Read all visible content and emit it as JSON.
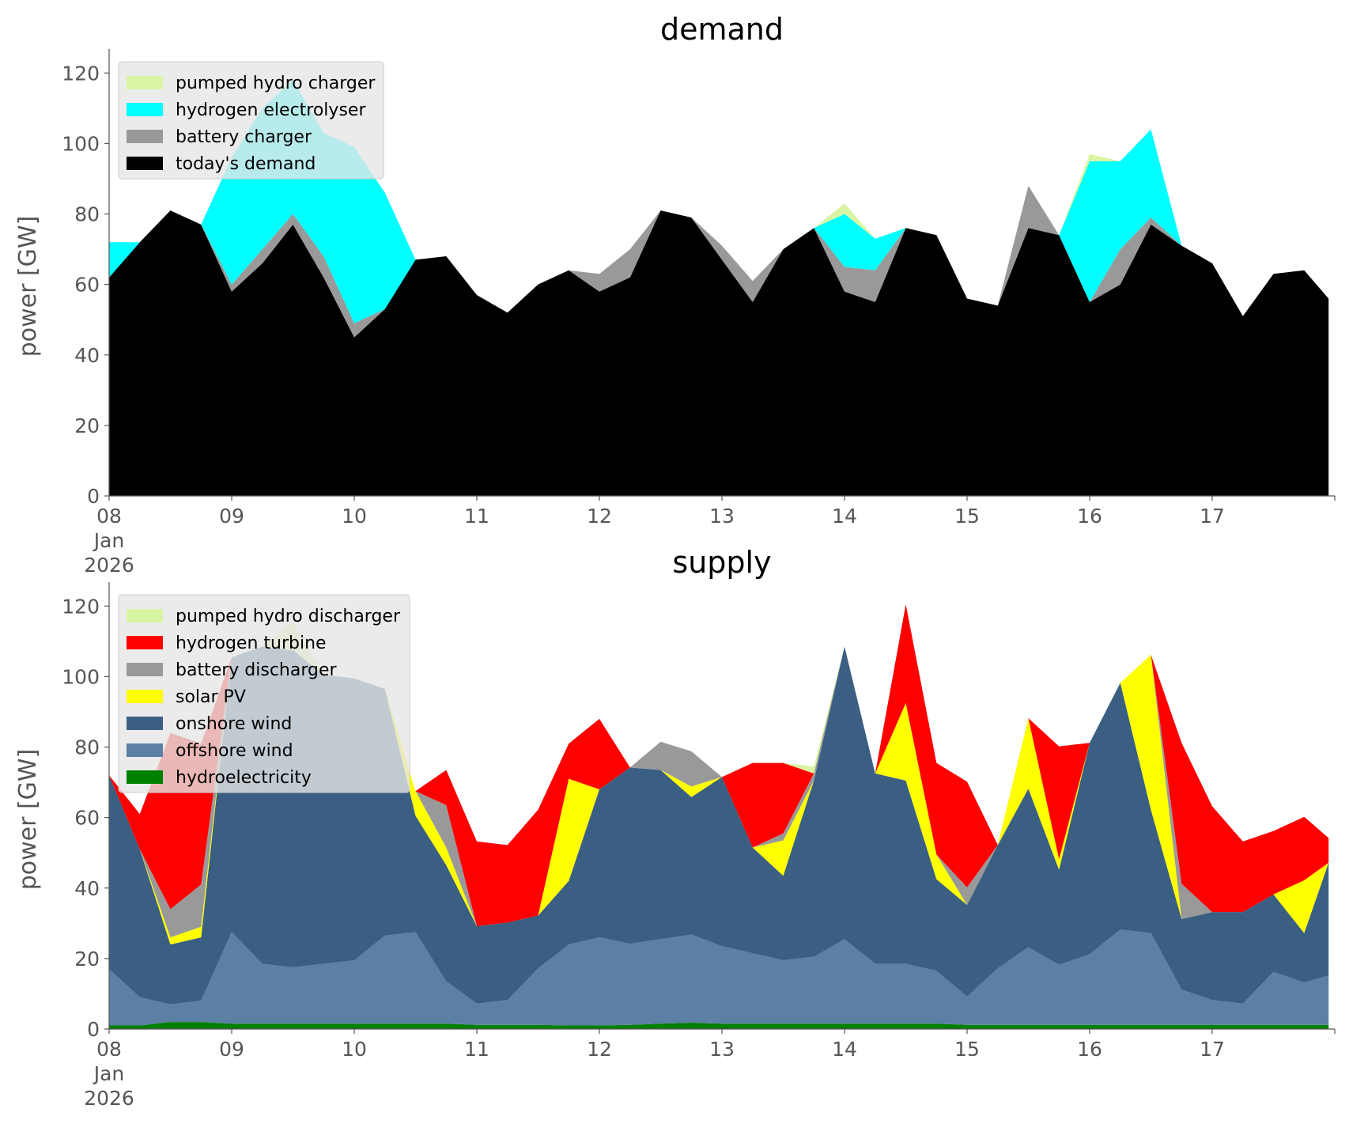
{
  "colors": {
    "pumped_hydro": "#d9f5a3",
    "hydrogen_electrolyser": "#00ffff",
    "hydrogen_turbine": "#ff0000",
    "battery": "#999999",
    "demand": "#000000",
    "solar": "#ffff00",
    "onshore": "#3b5f82",
    "offshore": "#5b80a3",
    "hydro": "#008000",
    "legend_bg": "#e6e6e6"
  },
  "chart_data": [
    {
      "type": "area",
      "title": "demand",
      "xlabel": "",
      "ylabel": "power [GW]",
      "ylim": [
        0,
        125
      ],
      "yticks": [
        "0",
        "20",
        "40",
        "60",
        "80",
        "100",
        "120"
      ],
      "xlim_days": [
        0,
        10
      ],
      "xticks": [
        {
          "day": 0,
          "lines": [
            "08",
            "Jan",
            "2026"
          ]
        },
        {
          "day": 1,
          "lines": [
            "09"
          ]
        },
        {
          "day": 2,
          "lines": [
            "10"
          ]
        },
        {
          "day": 3,
          "lines": [
            "11"
          ]
        },
        {
          "day": 4,
          "lines": [
            "12"
          ]
        },
        {
          "day": 5,
          "lines": [
            "13"
          ]
        },
        {
          "day": 6,
          "lines": [
            "14"
          ]
        },
        {
          "day": 7,
          "lines": [
            "15"
          ]
        },
        {
          "day": 8,
          "lines": [
            "16"
          ]
        },
        {
          "day": 9,
          "lines": [
            "17"
          ]
        }
      ],
      "legend_position": "top-left",
      "legend": [
        "pumped hydro charger",
        "hydrogen electrolyser",
        "battery charger",
        "today's demand"
      ],
      "x": [
        0,
        0.25,
        0.5,
        0.75,
        1,
        1.25,
        1.5,
        1.75,
        2,
        2.25,
        2.5,
        2.75,
        3,
        3.25,
        3.5,
        3.75,
        4,
        4.25,
        4.5,
        4.75,
        5,
        5.25,
        5.5,
        5.75,
        6,
        6.25,
        6.5,
        6.75,
        7,
        7.25,
        7.5,
        7.75,
        8,
        8.25,
        8.5,
        8.75,
        9,
        9.25,
        9.5,
        9.75,
        9.95
      ],
      "series": [
        {
          "name": "today's demand",
          "color_key": "demand",
          "values": [
            62,
            72,
            81,
            77,
            58,
            66,
            77,
            62,
            45,
            53,
            67,
            68,
            57,
            52,
            60,
            64,
            58,
            62,
            81,
            79,
            67,
            55,
            70,
            76,
            58,
            55,
            76,
            74,
            56,
            54,
            76,
            74,
            55,
            60,
            77,
            71,
            66,
            51,
            63,
            64,
            56
          ]
        },
        {
          "name": "battery charger",
          "color_key": "battery",
          "values": [
            0,
            0,
            0,
            0,
            2,
            4,
            3,
            6,
            4,
            0,
            0,
            0,
            0,
            0,
            0,
            0,
            5,
            8,
            0,
            0,
            4,
            6,
            0,
            0,
            7,
            9,
            0,
            0,
            0,
            0,
            12,
            0,
            0,
            10,
            2,
            0,
            0,
            0,
            0,
            0,
            0
          ]
        },
        {
          "name": "hydrogen electrolyser",
          "color_key": "hydrogen_electrolyser",
          "values": [
            10,
            0,
            0,
            0,
            36,
            40,
            38,
            35,
            50,
            33,
            0,
            0,
            0,
            0,
            0,
            0,
            0,
            0,
            0,
            0,
            0,
            0,
            0,
            0,
            15,
            9,
            0,
            0,
            0,
            0,
            0,
            0,
            40,
            25,
            25,
            0,
            0,
            0,
            0,
            0,
            0
          ]
        },
        {
          "name": "pumped hydro charger",
          "color_key": "pumped_hydro",
          "values": [
            0,
            0,
            0,
            0,
            0,
            0,
            0,
            0,
            0,
            0,
            0,
            0,
            0,
            0,
            0,
            0,
            0,
            0,
            0,
            0,
            0,
            0,
            0,
            0,
            3,
            0,
            0,
            0,
            0,
            0,
            0,
            0,
            2,
            0,
            0,
            0,
            0,
            0,
            0,
            0,
            0
          ]
        }
      ]
    },
    {
      "type": "area",
      "title": "supply",
      "xlabel": "",
      "ylabel": "power [GW]",
      "ylim": [
        0,
        125
      ],
      "yticks": [
        "0",
        "20",
        "40",
        "60",
        "80",
        "100",
        "120"
      ],
      "xlim_days": [
        0,
        10
      ],
      "xticks": [
        {
          "day": 0,
          "lines": [
            "08",
            "Jan",
            "2026"
          ]
        },
        {
          "day": 1,
          "lines": [
            "09"
          ]
        },
        {
          "day": 2,
          "lines": [
            "10"
          ]
        },
        {
          "day": 3,
          "lines": [
            "11"
          ]
        },
        {
          "day": 4,
          "lines": [
            "12"
          ]
        },
        {
          "day": 5,
          "lines": [
            "13"
          ]
        },
        {
          "day": 6,
          "lines": [
            "14"
          ]
        },
        {
          "day": 7,
          "lines": [
            "15"
          ]
        },
        {
          "day": 8,
          "lines": [
            "16"
          ]
        },
        {
          "day": 9,
          "lines": [
            "17"
          ]
        }
      ],
      "legend_position": "top-left",
      "legend": [
        "pumped hydro discharger",
        "hydrogen turbine",
        "battery discharger",
        "solar PV",
        "onshore wind",
        "offshore wind",
        "hydroelectricity"
      ],
      "x": [
        0,
        0.25,
        0.5,
        0.75,
        1,
        1.25,
        1.5,
        1.75,
        2,
        2.25,
        2.5,
        2.75,
        3,
        3.25,
        3.5,
        3.75,
        4,
        4.25,
        4.5,
        4.75,
        5,
        5.25,
        5.5,
        5.75,
        6,
        6.25,
        6.5,
        6.75,
        7,
        7.25,
        7.5,
        7.75,
        8,
        8.25,
        8.5,
        8.75,
        9,
        9.25,
        9.5,
        9.75,
        9.95
      ],
      "series": [
        {
          "name": "hydroelectricity",
          "color_key": "hydro",
          "values": [
            1,
            1,
            2,
            2,
            1.5,
            1.5,
            1.5,
            1.5,
            1.5,
            1.5,
            1.5,
            1.5,
            1.2,
            1.2,
            1.2,
            1,
            1,
            1.2,
            1.5,
            1.8,
            1.5,
            1.5,
            1.5,
            1.5,
            1.5,
            1.5,
            1.5,
            1.5,
            1.2,
            1.2,
            1.2,
            1.2,
            1.2,
            1.2,
            1.2,
            1.2,
            1.2,
            1.2,
            1.2,
            1.2,
            1.2
          ]
        },
        {
          "name": "offshore wind",
          "color_key": "offshore",
          "values": [
            16,
            8,
            5,
            6,
            26,
            17,
            16,
            17,
            18,
            25,
            26,
            12,
            6,
            7,
            16,
            23,
            25,
            23,
            24,
            25,
            22,
            20,
            18,
            19,
            24,
            17,
            17,
            15,
            8,
            16,
            22,
            17,
            20,
            27,
            26,
            10,
            7,
            6,
            15,
            12,
            14
          ]
        },
        {
          "name": "onshore wind",
          "color_key": "onshore",
          "values": [
            55,
            42,
            17,
            18,
            78,
            90,
            90,
            82,
            80,
            70,
            33,
            33,
            22,
            22,
            15,
            18,
            42,
            50,
            48,
            39,
            48,
            30,
            24,
            50,
            83,
            54,
            52,
            26,
            26,
            35,
            45,
            27,
            60,
            70,
            35,
            20,
            25,
            26,
            22,
            14,
            32
          ]
        },
        {
          "name": "solar PV",
          "color_key": "solar",
          "values": [
            0,
            0,
            2,
            3,
            0,
            0,
            0,
            0,
            0,
            0,
            7,
            5,
            0,
            0,
            0,
            29,
            0,
            0,
            0,
            3,
            0,
            0,
            10,
            0,
            0,
            0,
            22,
            7,
            0,
            0,
            20,
            3,
            0,
            0,
            44,
            0,
            0,
            0,
            0,
            15,
            0
          ]
        },
        {
          "name": "battery discharger",
          "color_key": "battery",
          "values": [
            0,
            0,
            8,
            12,
            0,
            0,
            0,
            0,
            0,
            0,
            0,
            12,
            0,
            0,
            0,
            0,
            0,
            0,
            8,
            10,
            0,
            0,
            2,
            2,
            0,
            0,
            0,
            0,
            5,
            0,
            0,
            0,
            0,
            0,
            0,
            10,
            0,
            0,
            0,
            0,
            0
          ]
        },
        {
          "name": "hydrogen turbine",
          "color_key": "hydrogen_turbine",
          "values": [
            0,
            10,
            50,
            40,
            0,
            0,
            0,
            0,
            0,
            0,
            0,
            10,
            24,
            22,
            30,
            10,
            20,
            0,
            0,
            0,
            0,
            24,
            20,
            0,
            0,
            0,
            28,
            26,
            30,
            0,
            0,
            32,
            0,
            0,
            0,
            40,
            30,
            20,
            18,
            18,
            7
          ]
        },
        {
          "name": "pumped hydro discharger",
          "color_key": "pumped_hydro",
          "values": [
            0,
            0,
            0,
            0,
            0,
            0,
            8,
            0,
            0,
            0,
            0,
            0,
            0,
            0,
            0,
            0,
            0,
            0,
            0,
            0,
            0,
            0,
            0,
            2,
            0,
            0,
            0,
            0,
            0,
            0,
            0,
            0,
            0,
            0,
            0,
            0,
            0,
            0,
            0,
            0,
            0
          ]
        }
      ]
    }
  ]
}
